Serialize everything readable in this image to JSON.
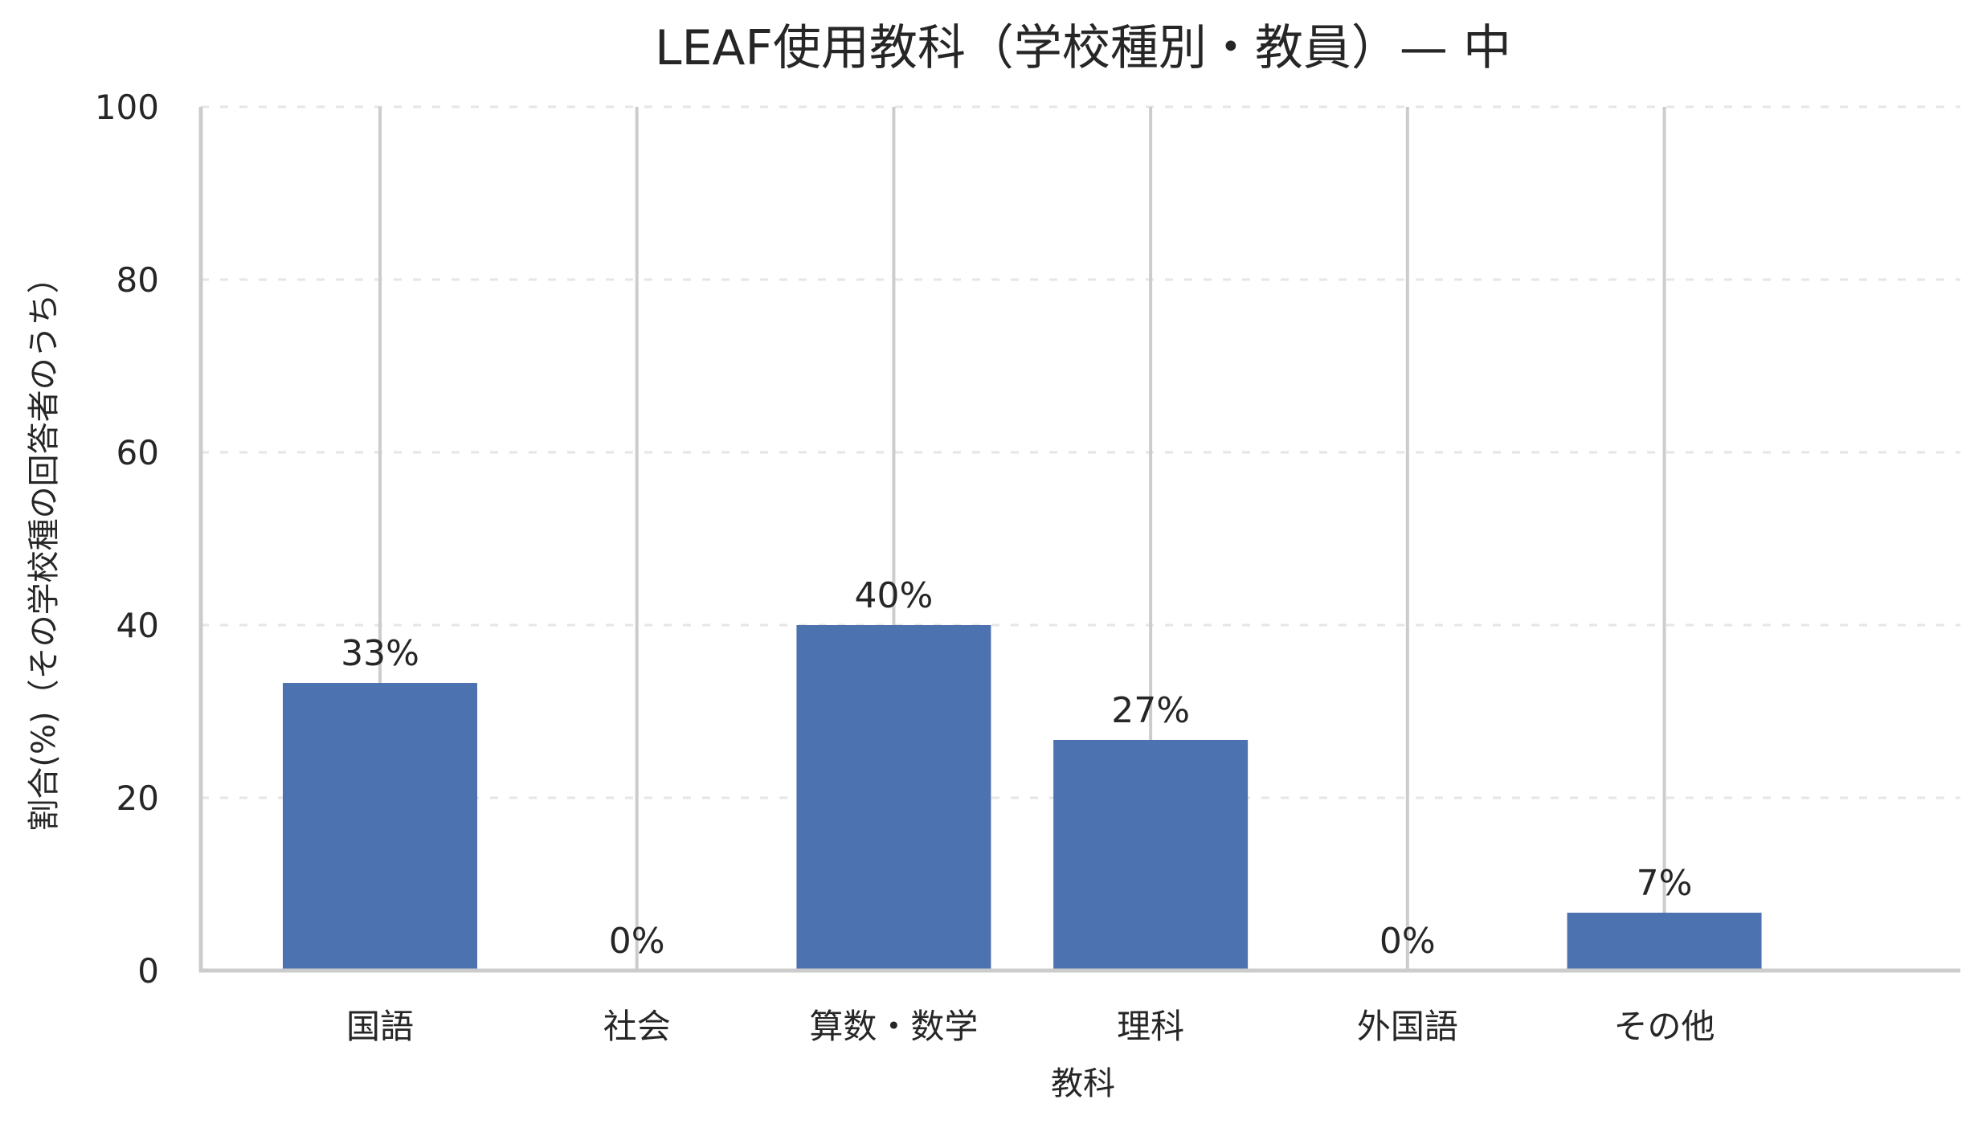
{
  "chart_data": {
    "type": "bar",
    "title": "LEAF使用教科（学校種別・教員）— 中",
    "xlabel": "教科",
    "ylabel": "割合(%)（その学校種の回答者のうち）",
    "categories": [
      "国語",
      "社会",
      "算数・数学",
      "理科",
      "外国語",
      "その他"
    ],
    "values": [
      33.3,
      0,
      40.0,
      26.7,
      0,
      6.7
    ],
    "data_labels": [
      "33%",
      "0%",
      "40%",
      "27%",
      "0%",
      "7%"
    ],
    "ylim": [
      0,
      100
    ],
    "yticks": [
      0,
      20,
      40,
      60,
      80,
      100
    ],
    "ytick_labels": [
      "0",
      "20",
      "40",
      "60",
      "80",
      "100"
    ],
    "grid": {
      "horizontal": "dashed",
      "vertical": "solid"
    },
    "legend": "none",
    "colors": {
      "bar": "#4c72b0",
      "grid_major": "#cccccc",
      "grid_minor": "#e6e6e6",
      "text": "#262626"
    }
  }
}
